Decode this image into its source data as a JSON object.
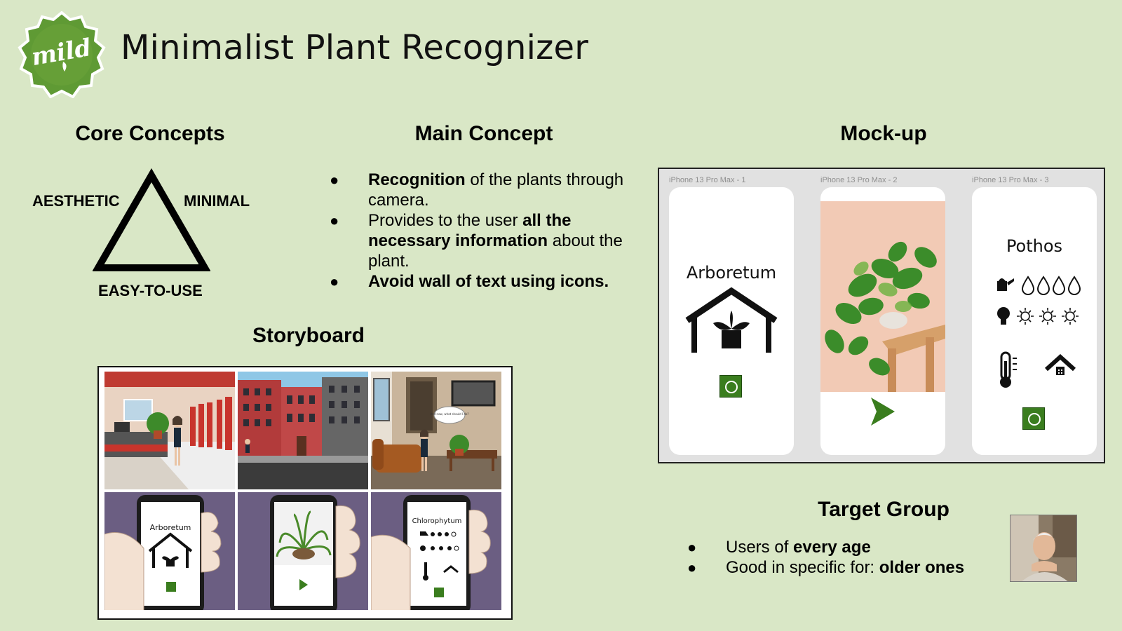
{
  "header": {
    "logo_text": "mild",
    "title": "Minimalist Plant Recognizer"
  },
  "core": {
    "heading": "Core Concepts",
    "labels": [
      "AESTHETIC",
      "MINIMAL",
      "EASY-TO-USE"
    ]
  },
  "main": {
    "heading": "Main Concept",
    "items": [
      [
        {
          "t": "Recognition",
          "b": true
        },
        {
          "t": " of the plants through camera.",
          "b": false
        }
      ],
      [
        {
          "t": "Provides to the user ",
          "b": false
        },
        {
          "t": "all the necessary information",
          "b": true
        },
        {
          "t": " about the plant.",
          "b": false
        }
      ],
      [
        {
          "t": "Avoid wall of text using icons.",
          "b": true
        }
      ]
    ]
  },
  "mockup": {
    "heading": "Mock-up",
    "screens": [
      {
        "label": "iPhone 13 Pro Max - 1",
        "title": "Arboretum"
      },
      {
        "label": "iPhone 13 Pro Max - 2",
        "title": ""
      },
      {
        "label": "iPhone 13 Pro Max - 3",
        "title": "Pothos"
      }
    ]
  },
  "storyboard": {
    "heading": "Storyboard",
    "bubble_text": "And now, what should I do?",
    "phone_titles": [
      "Arboretum",
      "Chlorophytum"
    ]
  },
  "target": {
    "heading": "Target Group",
    "items": [
      [
        {
          "t": "Users of ",
          "b": false
        },
        {
          "t": "every age",
          "b": true
        }
      ],
      [
        {
          "t": "Good in specific for: ",
          "b": false
        },
        {
          "t": "older ones",
          "b": true
        }
      ]
    ]
  },
  "colors": {
    "background": "#d9e7c6",
    "accent_green": "#3a7d1e",
    "logo_green": "#6aa43a"
  },
  "icons": [
    "logo-badge",
    "triangle-outline",
    "greenhouse-icon",
    "camera-button-icon",
    "play-arrow-icon",
    "watering-can-icon",
    "water-drop-icon",
    "lightbulb-icon",
    "sun-icon",
    "thermometer-icon",
    "house-icon"
  ]
}
